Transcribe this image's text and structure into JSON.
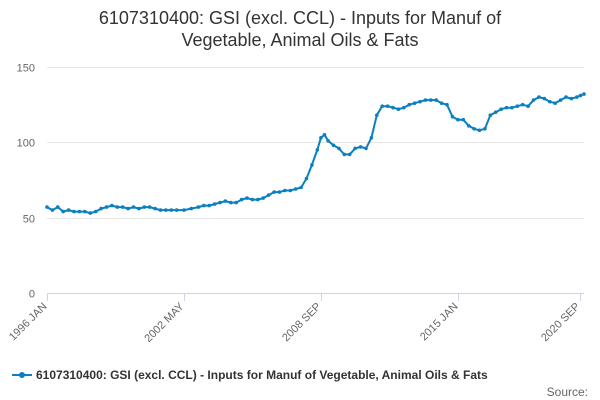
{
  "colors": {
    "series": "#0b7fbf",
    "grid": "#e6e6e6",
    "axis": "#ccd6eb",
    "text": "#333333",
    "tick_text": "#666666"
  },
  "chart_data": {
    "type": "line",
    "title_lines": [
      "6107310400: GSI (excl. CCL) - Inputs for Manuf of",
      "Vegetable, Animal Oils & Fats"
    ],
    "xlabel": "",
    "ylabel": "",
    "ylim": [
      0,
      150
    ],
    "yticks": [
      0,
      50,
      100,
      150
    ],
    "xlim": [
      "1996-01",
      "2020-11"
    ],
    "xticks": [
      {
        "date": "1996-01",
        "label": "1996 JAN"
      },
      {
        "date": "2002-05",
        "label": "2002 MAY"
      },
      {
        "date": "2008-09",
        "label": "2008 SEP"
      },
      {
        "date": "2015-01",
        "label": "2015 JAN"
      },
      {
        "date": "2020-09",
        "label": "2020 SEP"
      }
    ],
    "grid": true,
    "legend_position": "bottom",
    "source_label": "Source:",
    "series": [
      {
        "name": "6107310400: GSI (excl. CCL) - Inputs for Manuf of Vegetable, Animal Oils & Fats",
        "points": [
          [
            "1996-01",
            57
          ],
          [
            "1996-04",
            55
          ],
          [
            "1996-07",
            57
          ],
          [
            "1996-10",
            54
          ],
          [
            "1997-01",
            55
          ],
          [
            "1997-04",
            54
          ],
          [
            "1997-07",
            54
          ],
          [
            "1997-10",
            54
          ],
          [
            "1998-01",
            53
          ],
          [
            "1998-04",
            54
          ],
          [
            "1998-07",
            56
          ],
          [
            "1998-10",
            57
          ],
          [
            "1999-01",
            58
          ],
          [
            "1999-04",
            57
          ],
          [
            "1999-07",
            57
          ],
          [
            "1999-10",
            56
          ],
          [
            "2000-01",
            57
          ],
          [
            "2000-04",
            56
          ],
          [
            "2000-07",
            57
          ],
          [
            "2000-10",
            57
          ],
          [
            "2001-01",
            56
          ],
          [
            "2001-04",
            55
          ],
          [
            "2001-07",
            55
          ],
          [
            "2001-10",
            55
          ],
          [
            "2002-01",
            55
          ],
          [
            "2002-05",
            55
          ],
          [
            "2002-09",
            56
          ],
          [
            "2003-01",
            57
          ],
          [
            "2003-04",
            58
          ],
          [
            "2003-07",
            58
          ],
          [
            "2003-10",
            59
          ],
          [
            "2004-01",
            60
          ],
          [
            "2004-04",
            61
          ],
          [
            "2004-07",
            60
          ],
          [
            "2004-10",
            60
          ],
          [
            "2005-01",
            62
          ],
          [
            "2005-04",
            63
          ],
          [
            "2005-07",
            62
          ],
          [
            "2005-10",
            62
          ],
          [
            "2006-01",
            63
          ],
          [
            "2006-04",
            65
          ],
          [
            "2006-07",
            67
          ],
          [
            "2006-10",
            67
          ],
          [
            "2007-01",
            68
          ],
          [
            "2007-04",
            68
          ],
          [
            "2007-07",
            69
          ],
          [
            "2007-10",
            70
          ],
          [
            "2008-01",
            76
          ],
          [
            "2008-04",
            85
          ],
          [
            "2008-07",
            95
          ],
          [
            "2008-09",
            103
          ],
          [
            "2008-11",
            105
          ],
          [
            "2009-01",
            101
          ],
          [
            "2009-04",
            98
          ],
          [
            "2009-07",
            96
          ],
          [
            "2009-10",
            92
          ],
          [
            "2010-01",
            92
          ],
          [
            "2010-04",
            96
          ],
          [
            "2010-07",
            97
          ],
          [
            "2010-10",
            96
          ],
          [
            "2011-01",
            103
          ],
          [
            "2011-04",
            118
          ],
          [
            "2011-07",
            124
          ],
          [
            "2011-10",
            124
          ],
          [
            "2012-01",
            123
          ],
          [
            "2012-04",
            122
          ],
          [
            "2012-07",
            123
          ],
          [
            "2012-10",
            125
          ],
          [
            "2013-01",
            126
          ],
          [
            "2013-04",
            127
          ],
          [
            "2013-07",
            128
          ],
          [
            "2013-10",
            128
          ],
          [
            "2014-01",
            128
          ],
          [
            "2014-04",
            126
          ],
          [
            "2014-07",
            125
          ],
          [
            "2014-10",
            117
          ],
          [
            "2015-01",
            115
          ],
          [
            "2015-04",
            115
          ],
          [
            "2015-07",
            111
          ],
          [
            "2015-10",
            109
          ],
          [
            "2016-01",
            108
          ],
          [
            "2016-04",
            109
          ],
          [
            "2016-07",
            118
          ],
          [
            "2016-10",
            120
          ],
          [
            "2017-01",
            122
          ],
          [
            "2017-04",
            123
          ],
          [
            "2017-07",
            123
          ],
          [
            "2017-10",
            124
          ],
          [
            "2018-01",
            125
          ],
          [
            "2018-04",
            124
          ],
          [
            "2018-07",
            128
          ],
          [
            "2018-10",
            130
          ],
          [
            "2019-01",
            129
          ],
          [
            "2019-04",
            127
          ],
          [
            "2019-07",
            126
          ],
          [
            "2019-10",
            128
          ],
          [
            "2020-01",
            130
          ],
          [
            "2020-04",
            129
          ],
          [
            "2020-07",
            130
          ],
          [
            "2020-09",
            131
          ],
          [
            "2020-11",
            132
          ]
        ]
      }
    ]
  }
}
